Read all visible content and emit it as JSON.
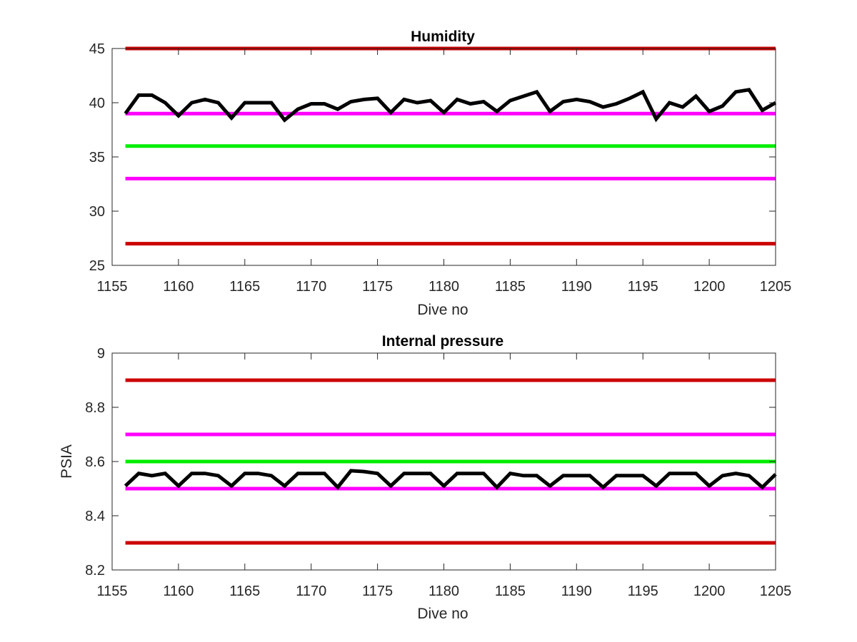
{
  "chart_data": [
    {
      "type": "line",
      "title": "Humidity",
      "xlabel": "Dive no",
      "ylabel": "",
      "xlim": [
        1155,
        1205
      ],
      "ylim": [
        25,
        45
      ],
      "xticks": [
        1155,
        1160,
        1165,
        1170,
        1175,
        1180,
        1185,
        1190,
        1195,
        1200,
        1205
      ],
      "yticks": [
        25,
        30,
        35,
        40,
        45
      ],
      "grid": false,
      "series": [
        {
          "color": "#000000",
          "x": [
            1156,
            1157,
            1158,
            1159,
            1160,
            1161,
            1162,
            1163,
            1164,
            1165,
            1166,
            1167,
            1168,
            1169,
            1170,
            1171,
            1172,
            1173,
            1174,
            1175,
            1176,
            1177,
            1178,
            1179,
            1180,
            1181,
            1182,
            1183,
            1184,
            1185,
            1186,
            1187,
            1188,
            1189,
            1190,
            1191,
            1192,
            1193,
            1194,
            1195,
            1196,
            1197,
            1198,
            1199,
            1200,
            1201,
            1202,
            1203,
            1204,
            1205
          ],
          "values": [
            39,
            40.7,
            40.7,
            40,
            38.8,
            40,
            40.3,
            40,
            38.6,
            40,
            40,
            40,
            38.4,
            39.4,
            39.9,
            39.9,
            39.4,
            40.1,
            40.3,
            40.4,
            39.1,
            40.3,
            40,
            40.2,
            39.1,
            40.3,
            39.9,
            40.1,
            39.2,
            40.2,
            40.6,
            41,
            39.2,
            40.1,
            40.3,
            40.1,
            39.6,
            39.9,
            40.4,
            41,
            38.5,
            40,
            39.6,
            40.6,
            39.2,
            39.7,
            41,
            41.2,
            39.3,
            40
          ]
        }
      ],
      "reference_lines": [
        {
          "y": 45,
          "color": "#cc0000"
        },
        {
          "y": 39,
          "color": "#ff00ff"
        },
        {
          "y": 36,
          "color": "#00ee00"
        },
        {
          "y": 33,
          "color": "#ff00ff"
        },
        {
          "y": 27,
          "color": "#cc0000"
        }
      ]
    },
    {
      "type": "line",
      "title": "Internal pressure",
      "xlabel": "Dive no",
      "ylabel": "PSIA",
      "xlim": [
        1155,
        1205
      ],
      "ylim": [
        8.2,
        9
      ],
      "xticks": [
        1155,
        1160,
        1165,
        1170,
        1175,
        1180,
        1185,
        1190,
        1195,
        1200,
        1205
      ],
      "yticks": [
        "8.2",
        "8.4",
        "8.6",
        "8.8",
        "9"
      ],
      "grid": false,
      "series": [
        {
          "color": "#000000",
          "x": [
            1156,
            1157,
            1158,
            1159,
            1160,
            1161,
            1162,
            1163,
            1164,
            1165,
            1166,
            1167,
            1168,
            1169,
            1170,
            1171,
            1172,
            1173,
            1174,
            1175,
            1176,
            1177,
            1178,
            1179,
            1180,
            1181,
            1182,
            1183,
            1184,
            1185,
            1186,
            1187,
            1188,
            1189,
            1190,
            1191,
            1192,
            1193,
            1194,
            1195,
            1196,
            1197,
            1198,
            1199,
            1200,
            1201,
            1202,
            1203,
            1204,
            1205
          ],
          "values": [
            8.51,
            8.556,
            8.548,
            8.556,
            8.51,
            8.556,
            8.556,
            8.548,
            8.51,
            8.556,
            8.556,
            8.548,
            8.51,
            8.556,
            8.556,
            8.556,
            8.505,
            8.566,
            8.563,
            8.556,
            8.51,
            8.556,
            8.556,
            8.556,
            8.51,
            8.556,
            8.556,
            8.556,
            8.505,
            8.556,
            8.548,
            8.548,
            8.51,
            8.548,
            8.548,
            8.548,
            8.505,
            8.548,
            8.548,
            8.548,
            8.51,
            8.556,
            8.556,
            8.556,
            8.51,
            8.548,
            8.556,
            8.548,
            8.505,
            8.553
          ]
        }
      ],
      "reference_lines": [
        {
          "y": 8.9,
          "color": "#cc0000"
        },
        {
          "y": 8.7,
          "color": "#ff00ff"
        },
        {
          "y": 8.6,
          "color": "#00ee00"
        },
        {
          "y": 8.5,
          "color": "#ff00ff"
        },
        {
          "y": 8.3,
          "color": "#cc0000"
        }
      ]
    }
  ]
}
